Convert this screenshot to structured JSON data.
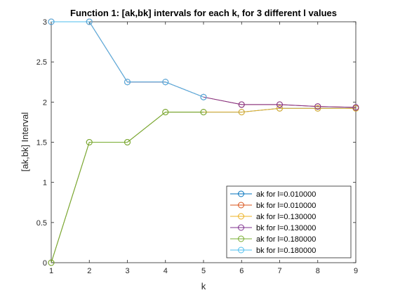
{
  "chart_data": {
    "type": "line",
    "title": "Function 1: [ak,bk] intervals for each k, for 3 different l values",
    "xlabel": "k",
    "ylabel": "[ak,bk] Interval",
    "xlim": [
      1,
      9
    ],
    "ylim": [
      0,
      3
    ],
    "xticks": [
      "1",
      "2",
      "3",
      "4",
      "5",
      "6",
      "7",
      "8",
      "9"
    ],
    "yticks": [
      "0",
      "0.5",
      "1",
      "1.5",
      "2",
      "2.5",
      "3"
    ],
    "grid": false,
    "legend_position": "bottom-right",
    "marker": "circle",
    "x": [
      1,
      2,
      3,
      4,
      5,
      6,
      7,
      8,
      9
    ],
    "series": [
      {
        "name": "ak for l=0.010000",
        "color": "#0072BD",
        "values": [
          0,
          1.5,
          1.5,
          1.875,
          1.875,
          1.875,
          1.921875,
          1.921875,
          1.921875
        ]
      },
      {
        "name": "bk for l=0.010000",
        "color": "#D95319",
        "values": [
          3,
          3,
          2.25,
          2.25,
          2.0625,
          1.96875,
          1.96875,
          1.9453125,
          1.93359375
        ]
      },
      {
        "name": "ak for l=0.130000",
        "color": "#EDB120",
        "values": [
          0,
          1.5,
          1.5,
          1.875,
          1.875,
          1.875,
          1.921875,
          1.921875,
          1.921875
        ]
      },
      {
        "name": "bk for l=0.130000",
        "color": "#7E2F8E",
        "values": [
          3,
          3,
          2.25,
          2.25,
          2.0625,
          1.96875,
          1.96875,
          1.9453125,
          1.93359375
        ]
      },
      {
        "name": "ak for l=0.180000",
        "color": "#77AC30",
        "values": [
          0,
          1.5,
          1.5,
          1.875,
          1.875,
          null,
          null,
          null,
          null
        ]
      },
      {
        "name": "bk for l=0.180000",
        "color": "#4DBEEE",
        "values": [
          3,
          3,
          2.25,
          2.25,
          2.0625,
          null,
          null,
          null,
          null
        ]
      }
    ]
  }
}
